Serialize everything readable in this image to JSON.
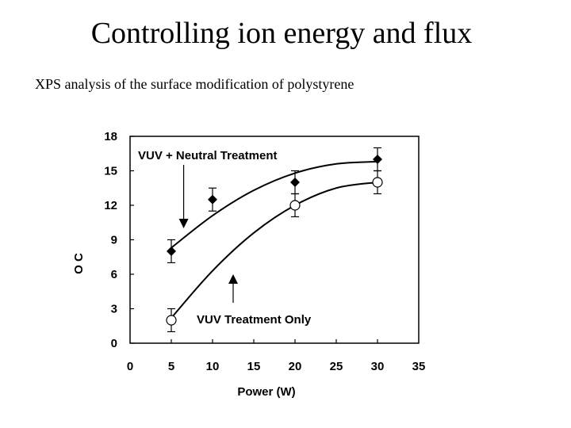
{
  "slide": {
    "title": "Controlling ion energy and flux",
    "subtitle": "XPS analysis of the surface modification of polystyrene"
  },
  "chart_data": {
    "type": "scatter",
    "xlabel": "Power (W)",
    "ylabel": "O / C",
    "xlim": [
      0,
      35
    ],
    "ylim": [
      0,
      18
    ],
    "x_ticks": [
      0,
      5,
      10,
      15,
      20,
      25,
      30,
      35
    ],
    "y_ticks": [
      0,
      3,
      6,
      9,
      12,
      15,
      18
    ],
    "grid": false,
    "series": [
      {
        "name": "VUV + Neutral Treatment",
        "marker": "filled-diamond",
        "x": [
          5,
          10,
          20,
          30
        ],
        "y": [
          8,
          12.5,
          14,
          16
        ],
        "error": [
          1,
          1,
          1,
          1
        ],
        "trend_x": [
          5,
          10,
          15,
          20,
          25,
          30
        ],
        "trend_y": [
          8.3,
          11.1,
          13.3,
          14.8,
          15.6,
          15.8
        ]
      },
      {
        "name": "VUV Treatment Only",
        "marker": "open-circle",
        "x": [
          5,
          20,
          30
        ],
        "y": [
          2,
          12,
          14
        ],
        "error": [
          1,
          1,
          1
        ],
        "trend_x": [
          5,
          10,
          15,
          20,
          25,
          30
        ],
        "trend_y": [
          2.2,
          6.3,
          9.6,
          12.0,
          13.5,
          14.0
        ]
      }
    ],
    "annotations": [
      {
        "text": "VUV + Neutral Treatment",
        "arrow_to": [
          6.5,
          10.0
        ],
        "arrow_dir": "down"
      },
      {
        "text": "VUV Treatment Only",
        "arrow_to": [
          12.5,
          6.0
        ],
        "arrow_dir": "up"
      }
    ]
  }
}
